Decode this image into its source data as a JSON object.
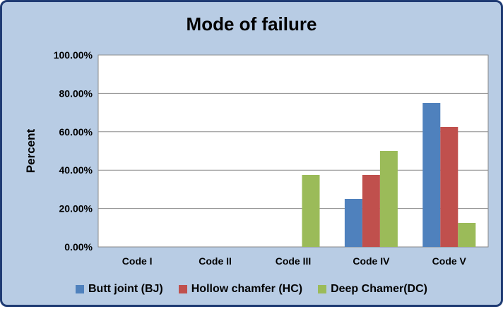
{
  "chart_data": {
    "type": "bar",
    "title": "Mode of failure",
    "xlabel": "",
    "ylabel": "Percent",
    "categories": [
      "Code I",
      "Code II",
      "Code III",
      "Code IV",
      "Code V"
    ],
    "ylim": [
      0,
      100
    ],
    "yticks": [
      "0.00%",
      "20.00%",
      "40.00%",
      "60.00%",
      "80.00%",
      "100.00%"
    ],
    "grid": true,
    "legend_position": "bottom",
    "series": [
      {
        "name": "Butt joint (BJ)",
        "color": "#4f81bd",
        "values": [
          0,
          0,
          0,
          25,
          75
        ]
      },
      {
        "name": "Hollow chamfer (HC)",
        "color": "#c0504d",
        "values": [
          0,
          0,
          0,
          37.5,
          62.5
        ]
      },
      {
        "name": "Deep Chamer(DC)",
        "color": "#9bbb59",
        "values": [
          0,
          0,
          37.5,
          50,
          12.5
        ]
      }
    ]
  }
}
